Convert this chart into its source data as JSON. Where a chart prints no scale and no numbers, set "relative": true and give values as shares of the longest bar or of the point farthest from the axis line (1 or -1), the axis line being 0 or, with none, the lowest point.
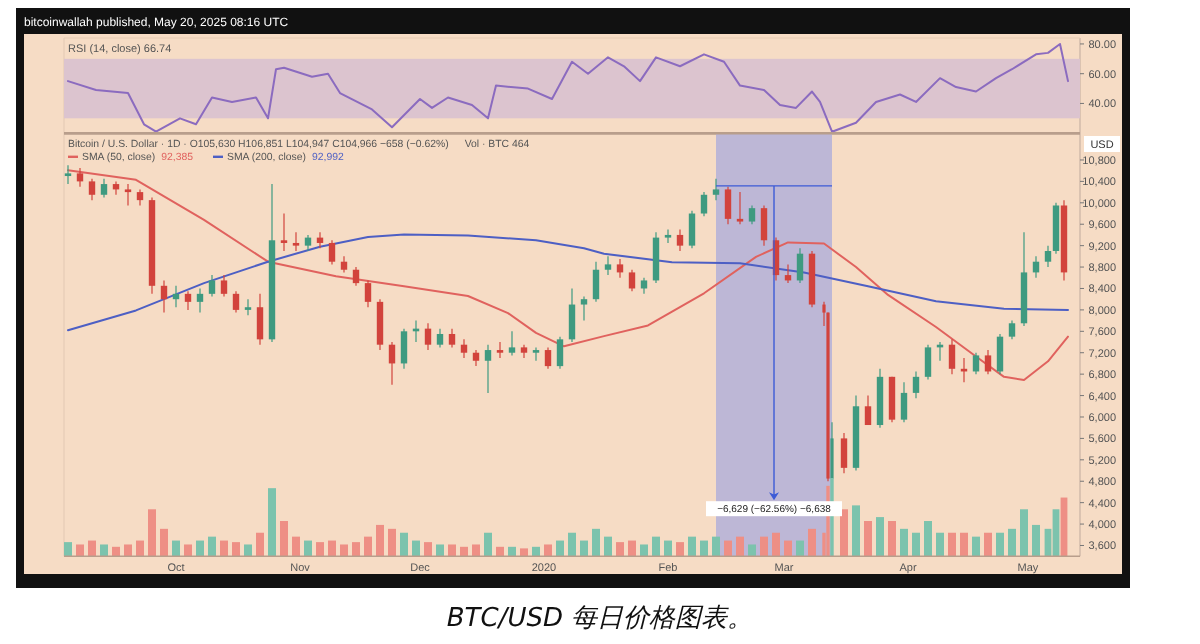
{
  "chart_data": [
    {
      "type": "line",
      "title": "RSI (14, close) 66.74",
      "color": "#8b6bbf",
      "x": [
        "2019-09-04",
        "2019-09-11",
        "2019-09-19",
        "2019-09-23",
        "2019-09-26",
        "2019-10-02",
        "2019-10-06",
        "2019-10-10",
        "2019-10-15",
        "2019-10-21",
        "2019-10-24",
        "2019-10-26",
        "2019-10-28",
        "2019-11-04",
        "2019-11-08",
        "2019-11-11",
        "2019-11-19",
        "2019-11-24",
        "2019-12-01",
        "2019-12-04",
        "2019-12-08",
        "2019-12-14",
        "2019-12-18",
        "2019-12-20",
        "2019-12-28",
        "2020-01-03",
        "2020-01-08",
        "2020-01-12",
        "2020-01-17",
        "2020-01-21",
        "2020-01-25",
        "2020-01-29",
        "2020-02-04",
        "2020-02-10",
        "2020-02-15",
        "2020-02-19",
        "2020-02-25",
        "2020-02-29",
        "2020-03-04",
        "2020-03-08",
        "2020-03-10",
        "2020-03-13",
        "2020-03-19",
        "2020-03-24",
        "2020-03-30",
        "2020-04-03",
        "2020-04-09",
        "2020-04-13",
        "2020-04-18",
        "2020-04-23",
        "2020-04-27",
        "2020-05-03",
        "2020-05-06",
        "2020-05-09",
        "2020-05-11"
      ],
      "values": [
        55,
        49,
        47,
        26,
        21,
        30,
        26,
        44,
        41,
        44,
        30,
        63,
        64,
        58,
        60,
        47,
        36,
        24,
        43,
        37,
        44,
        39,
        30,
        52,
        50,
        43,
        68,
        60,
        71,
        65,
        55,
        71,
        65,
        73,
        68,
        52,
        49,
        39,
        37,
        48,
        41,
        21,
        27,
        41,
        46,
        41,
        57,
        51,
        48,
        57,
        63,
        73,
        74,
        80,
        55
      ],
      "xlim": [
        "2019-09-03",
        "2020-05-14"
      ],
      "ylim": [
        20,
        84
      ],
      "yticks": [
        {
          "value": 40,
          "label": "40.00"
        },
        {
          "value": 60,
          "label": "60.00"
        },
        {
          "value": 80,
          "label": "80.00"
        }
      ],
      "bands": [
        {
          "axis": "y",
          "from": 30,
          "to": 70,
          "color": "#dcc4cf"
        }
      ],
      "tick_labels": "y",
      "annotations": [
        "bitcoinwallah published, May 20, 2025 08:16 UTC"
      ]
    },
    {
      "type": "candlestick",
      "title": "Bitcoin / U.S. Dollar · 1D · O105,630 H106,851 L104,947 C104,966 −658 (−0.62%)",
      "ylabel": "USD",
      "x": [
        "2019-09-04",
        "2019-09-07",
        "2019-09-10",
        "2019-09-13",
        "2019-09-16",
        "2019-09-19",
        "2019-09-22",
        "2019-09-25",
        "2019-09-28",
        "2019-10-01",
        "2019-10-04",
        "2019-10-07",
        "2019-10-10",
        "2019-10-13",
        "2019-10-16",
        "2019-10-19",
        "2019-10-22",
        "2019-10-25",
        "2019-10-28",
        "2019-10-31",
        "2019-11-03",
        "2019-11-06",
        "2019-11-09",
        "2019-11-12",
        "2019-11-15",
        "2019-11-18",
        "2019-11-21",
        "2019-11-24",
        "2019-11-27",
        "2019-11-30",
        "2019-12-03",
        "2019-12-06",
        "2019-12-09",
        "2019-12-12",
        "2019-12-15",
        "2019-12-18",
        "2019-12-21",
        "2019-12-24",
        "2019-12-27",
        "2019-12-30",
        "2020-01-02",
        "2020-01-05",
        "2020-01-08",
        "2020-01-11",
        "2020-01-14",
        "2020-01-17",
        "2020-01-20",
        "2020-01-23",
        "2020-01-26",
        "2020-01-29",
        "2020-02-01",
        "2020-02-04",
        "2020-02-07",
        "2020-02-10",
        "2020-02-13",
        "2020-02-16",
        "2020-02-19",
        "2020-02-22",
        "2020-02-25",
        "2020-02-28",
        "2020-03-02",
        "2020-03-05",
        "2020-03-08",
        "2020-03-11",
        "2020-03-12",
        "2020-03-13",
        "2020-03-16",
        "2020-03-19",
        "2020-03-22",
        "2020-03-25",
        "2020-03-28",
        "2020-03-31",
        "2020-04-03",
        "2020-04-06",
        "2020-04-09",
        "2020-04-12",
        "2020-04-15",
        "2020-04-18",
        "2020-04-21",
        "2020-04-24",
        "2020-04-27",
        "2020-04-30",
        "2020-05-03",
        "2020-05-06",
        "2020-05-08",
        "2020-05-10"
      ],
      "ohlc": [
        [
          10500,
          10700,
          10350,
          10550
        ],
        [
          10550,
          10650,
          10300,
          10400
        ],
        [
          10400,
          10450,
          10050,
          10150
        ],
        [
          10150,
          10450,
          10100,
          10350
        ],
        [
          10350,
          10400,
          10150,
          10250
        ],
        [
          10250,
          10350,
          9950,
          10200
        ],
        [
          10200,
          10250,
          9950,
          10050
        ],
        [
          10050,
          10100,
          8300,
          8450
        ],
        [
          8450,
          8550,
          7950,
          8200
        ],
        [
          8200,
          8450,
          8050,
          8300
        ],
        [
          8300,
          8350,
          8000,
          8150
        ],
        [
          8150,
          8400,
          7950,
          8300
        ],
        [
          8300,
          8650,
          8250,
          8550
        ],
        [
          8550,
          8650,
          8250,
          8300
        ],
        [
          8300,
          8350,
          7950,
          8000
        ],
        [
          8000,
          8200,
          7900,
          8050
        ],
        [
          8050,
          8300,
          7350,
          7450
        ],
        [
          7450,
          10350,
          7400,
          9300
        ],
        [
          9300,
          9800,
          9100,
          9250
        ],
        [
          9250,
          9450,
          9100,
          9200
        ],
        [
          9200,
          9400,
          9100,
          9350
        ],
        [
          9350,
          9450,
          9150,
          9250
        ],
        [
          9250,
          9300,
          8850,
          8900
        ],
        [
          8900,
          9000,
          8700,
          8750
        ],
        [
          8750,
          8800,
          8450,
          8500
        ],
        [
          8500,
          8550,
          8050,
          8150
        ],
        [
          8150,
          8200,
          7250,
          7350
        ],
        [
          7350,
          7400,
          6600,
          7000
        ],
        [
          7000,
          7650,
          6900,
          7600
        ],
        [
          7600,
          7800,
          7400,
          7650
        ],
        [
          7650,
          7750,
          7250,
          7350
        ],
        [
          7350,
          7650,
          7300,
          7550
        ],
        [
          7550,
          7650,
          7300,
          7350
        ],
        [
          7350,
          7450,
          7100,
          7200
        ],
        [
          7200,
          7250,
          6950,
          7050
        ],
        [
          7050,
          7350,
          6450,
          7250
        ],
        [
          7250,
          7400,
          7100,
          7200
        ],
        [
          7200,
          7600,
          7150,
          7300
        ],
        [
          7300,
          7350,
          7100,
          7200
        ],
        [
          7200,
          7300,
          7050,
          7250
        ],
        [
          7250,
          7300,
          6900,
          6950
        ],
        [
          6950,
          7500,
          6900,
          7450
        ],
        [
          7450,
          8400,
          7400,
          8100
        ],
        [
          8100,
          8250,
          7800,
          8200
        ],
        [
          8200,
          8900,
          8150,
          8750
        ],
        [
          8750,
          9000,
          8650,
          8850
        ],
        [
          8850,
          8950,
          8600,
          8700
        ],
        [
          8700,
          8750,
          8350,
          8400
        ],
        [
          8400,
          8600,
          8300,
          8550
        ],
        [
          8550,
          9450,
          8500,
          9350
        ],
        [
          9350,
          9500,
          9250,
          9400
        ],
        [
          9400,
          9500,
          9100,
          9200
        ],
        [
          9200,
          9850,
          9150,
          9800
        ],
        [
          9800,
          10200,
          9750,
          10150
        ],
        [
          10150,
          10450,
          10050,
          10250
        ],
        [
          10250,
          10300,
          9600,
          9700
        ],
        [
          9700,
          10200,
          9600,
          9650
        ],
        [
          9650,
          9950,
          9600,
          9900
        ],
        [
          9900,
          9950,
          9200,
          9300
        ],
        [
          9300,
          9350,
          8550,
          8650
        ],
        [
          8650,
          8850,
          8500,
          8550
        ],
        [
          8550,
          9150,
          8500,
          9050
        ],
        [
          9050,
          9100,
          8050,
          8100
        ],
        [
          8100,
          8150,
          7700,
          7950
        ],
        [
          7950,
          7950,
          4800,
          4850
        ],
        [
          4850,
          5900,
          3860,
          5600
        ],
        [
          5600,
          5700,
          4950,
          5050
        ],
        [
          5050,
          6400,
          5000,
          6200
        ],
        [
          6200,
          6400,
          5850,
          5850
        ],
        [
          5850,
          6900,
          5800,
          6750
        ],
        [
          6750,
          6750,
          5900,
          5950
        ],
        [
          5950,
          6650,
          5900,
          6450
        ],
        [
          6450,
          6850,
          6350,
          6750
        ],
        [
          6750,
          7350,
          6700,
          7300
        ],
        [
          7300,
          7400,
          7050,
          7350
        ],
        [
          7350,
          7450,
          6800,
          6900
        ],
        [
          6900,
          7100,
          6650,
          6850
        ],
        [
          6850,
          7200,
          6800,
          7150
        ],
        [
          7150,
          7250,
          6800,
          6850
        ],
        [
          6850,
          7550,
          6800,
          7500
        ],
        [
          7500,
          7800,
          7450,
          7750
        ],
        [
          7750,
          9450,
          7700,
          8700
        ],
        [
          8700,
          9000,
          8600,
          8900
        ],
        [
          8900,
          9200,
          8800,
          9100
        ],
        [
          9100,
          10000,
          9050,
          9950
        ],
        [
          9950,
          10050,
          8550,
          8700
        ]
      ],
      "series": [
        {
          "name": "SMA (50, close)",
          "type": "line",
          "color": "#e0625e",
          "x": [
            "2019-09-04",
            "2019-09-21",
            "2019-10-08",
            "2019-10-24",
            "2019-11-10",
            "2019-11-27",
            "2019-12-13",
            "2019-12-23",
            "2019-12-30",
            "2020-01-06",
            "2020-01-16",
            "2020-01-27",
            "2020-02-10",
            "2020-02-23",
            "2020-03-02",
            "2020-03-11",
            "2020-03-19",
            "2020-03-27",
            "2020-04-08",
            "2020-04-18",
            "2020-04-25",
            "2020-04-30",
            "2020-05-06",
            "2020-05-11"
          ],
          "values": [
            10610,
            10430,
            9680,
            8900,
            8630,
            8440,
            8260,
            7940,
            7570,
            7320,
            7510,
            7710,
            8310,
            8990,
            9260,
            9240,
            8800,
            8280,
            7680,
            7130,
            6750,
            6690,
            7040,
            7500
          ]
        },
        {
          "name": "SMA (200, close)",
          "type": "line",
          "color": "#4d5fc4",
          "x": [
            "2019-09-04",
            "2019-09-21",
            "2019-10-08",
            "2019-10-24",
            "2019-11-06",
            "2019-11-18",
            "2019-11-27",
            "2019-12-13",
            "2019-12-30",
            "2020-01-11",
            "2020-01-16",
            "2020-02-02",
            "2020-02-19",
            "2020-03-06",
            "2020-03-22",
            "2020-04-08",
            "2020-04-25",
            "2020-05-11"
          ],
          "values": [
            7620,
            7990,
            8500,
            8900,
            9180,
            9360,
            9410,
            9390,
            9300,
            9150,
            9050,
            8890,
            8870,
            8700,
            8440,
            8160,
            8020,
            8000
          ]
        }
      ],
      "xlim": [
        "2019-09-03",
        "2020-05-14"
      ],
      "ylim": [
        3400,
        11300
      ],
      "yticks": [
        {
          "value": 3600,
          "label": "3,600"
        },
        {
          "value": 4000,
          "label": "4,000"
        },
        {
          "value": 4400,
          "label": "4,400"
        },
        {
          "value": 4800,
          "label": "4,800"
        },
        {
          "value": 5200,
          "label": "5,200"
        },
        {
          "value": 5600,
          "label": "5,600"
        },
        {
          "value": 6000,
          "label": "6,000"
        },
        {
          "value": 6400,
          "label": "6,400"
        },
        {
          "value": 6800,
          "label": "6,800"
        },
        {
          "value": 7200,
          "label": "7,200"
        },
        {
          "value": 7600,
          "label": "7,600"
        },
        {
          "value": 8000,
          "label": "8,000"
        },
        {
          "value": 8400,
          "label": "8,400"
        },
        {
          "value": 8800,
          "label": "8,800"
        },
        {
          "value": 9200,
          "label": "9,200"
        },
        {
          "value": 9600,
          "label": "9,600"
        },
        {
          "value": 10000,
          "label": "10,000"
        },
        {
          "value": 10400,
          "label": "10,400"
        },
        {
          "value": 10800,
          "label": "10,800"
        }
      ],
      "tick_labels": "y",
      "legend": "top left",
      "bands": [
        {
          "axis": "x",
          "from": "2020-02-13",
          "to": "2020-03-13",
          "color": "#bdb7d6"
        }
      ],
      "annotations": [
        "Vol · BTC 464",
        "92,385",
        "92,992",
        "−6,629 (−62.56%) −6,638"
      ]
    },
    {
      "type": "bar",
      "relative": true,
      "x": [
        "2019-09-04",
        "2019-09-07",
        "2019-09-10",
        "2019-09-13",
        "2019-09-16",
        "2019-09-19",
        "2019-09-22",
        "2019-09-25",
        "2019-09-28",
        "2019-10-01",
        "2019-10-04",
        "2019-10-07",
        "2019-10-10",
        "2019-10-13",
        "2019-10-16",
        "2019-10-19",
        "2019-10-22",
        "2019-10-25",
        "2019-10-28",
        "2019-10-31",
        "2019-11-03",
        "2019-11-06",
        "2019-11-09",
        "2019-11-12",
        "2019-11-15",
        "2019-11-18",
        "2019-11-21",
        "2019-11-24",
        "2019-11-27",
        "2019-11-30",
        "2019-12-03",
        "2019-12-06",
        "2019-12-09",
        "2019-12-12",
        "2019-12-15",
        "2019-12-18",
        "2019-12-21",
        "2019-12-24",
        "2019-12-27",
        "2019-12-30",
        "2020-01-02",
        "2020-01-05",
        "2020-01-08",
        "2020-01-11",
        "2020-01-14",
        "2020-01-17",
        "2020-01-20",
        "2020-01-23",
        "2020-01-26",
        "2020-01-29",
        "2020-02-01",
        "2020-02-04",
        "2020-02-07",
        "2020-02-10",
        "2020-02-13",
        "2020-02-16",
        "2020-02-19",
        "2020-02-22",
        "2020-02-25",
        "2020-02-28",
        "2020-03-02",
        "2020-03-05",
        "2020-03-08",
        "2020-03-11",
        "2020-03-12",
        "2020-03-13",
        "2020-03-16",
        "2020-03-19",
        "2020-03-22",
        "2020-03-25",
        "2020-03-28",
        "2020-03-31",
        "2020-04-03",
        "2020-04-06",
        "2020-04-09",
        "2020-04-12",
        "2020-04-15",
        "2020-04-18",
        "2020-04-21",
        "2020-04-24",
        "2020-04-27",
        "2020-04-30",
        "2020-05-03",
        "2020-05-06",
        "2020-05-08",
        "2020-05-10"
      ],
      "values": [
        0.18,
        0.15,
        0.2,
        0.15,
        0.12,
        0.15,
        0.2,
        0.6,
        0.35,
        0.2,
        0.15,
        0.2,
        0.25,
        0.2,
        0.18,
        0.15,
        0.3,
        0.87,
        0.45,
        0.25,
        0.2,
        0.18,
        0.2,
        0.15,
        0.18,
        0.25,
        0.4,
        0.35,
        0.3,
        0.2,
        0.18,
        0.15,
        0.15,
        0.12,
        0.15,
        0.3,
        0.12,
        0.12,
        0.1,
        0.12,
        0.15,
        0.2,
        0.3,
        0.2,
        0.35,
        0.25,
        0.18,
        0.2,
        0.15,
        0.25,
        0.2,
        0.18,
        0.25,
        0.2,
        0.25,
        0.2,
        0.25,
        0.15,
        0.25,
        0.3,
        0.2,
        0.2,
        0.35,
        0.3,
        0.9,
        1,
        0.6,
        0.65,
        0.45,
        0.5,
        0.45,
        0.35,
        0.3,
        0.45,
        0.3,
        0.3,
        0.3,
        0.25,
        0.3,
        0.3,
        0.35,
        0.6,
        0.4,
        0.35,
        0.6,
        0.75
      ],
      "colors": [
        "#7cc3ad",
        "#ee8f85",
        "#ee8f85",
        "#7cc3ad",
        "#ee8f85",
        "#ee8f85",
        "#ee8f85",
        "#ee8f85",
        "#ee8f85",
        "#7cc3ad",
        "#ee8f85",
        "#7cc3ad",
        "#7cc3ad",
        "#ee8f85",
        "#ee8f85",
        "#7cc3ad",
        "#ee8f85",
        "#7cc3ad",
        "#ee8f85",
        "#ee8f85",
        "#7cc3ad",
        "#ee8f85",
        "#ee8f85",
        "#ee8f85",
        "#ee8f85",
        "#ee8f85",
        "#ee8f85",
        "#ee8f85",
        "#7cc3ad",
        "#7cc3ad",
        "#ee8f85",
        "#7cc3ad",
        "#ee8f85",
        "#ee8f85",
        "#ee8f85",
        "#7cc3ad",
        "#ee8f85",
        "#7cc3ad",
        "#ee8f85",
        "#7cc3ad",
        "#ee8f85",
        "#7cc3ad",
        "#7cc3ad",
        "#7cc3ad",
        "#7cc3ad",
        "#7cc3ad",
        "#ee8f85",
        "#ee8f85",
        "#7cc3ad",
        "#7cc3ad",
        "#7cc3ad",
        "#ee8f85",
        "#7cc3ad",
        "#7cc3ad",
        "#7cc3ad",
        "#ee8f85",
        "#ee8f85",
        "#7cc3ad",
        "#ee8f85",
        "#ee8f85",
        "#ee8f85",
        "#7cc3ad",
        "#ee8f85",
        "#ee8f85",
        "#ee8f85",
        "#7cc3ad",
        "#ee8f85",
        "#7cc3ad",
        "#ee8f85",
        "#7cc3ad",
        "#ee8f85",
        "#7cc3ad",
        "#7cc3ad",
        "#7cc3ad",
        "#7cc3ad",
        "#ee8f85",
        "#ee8f85",
        "#7cc3ad",
        "#ee8f85",
        "#7cc3ad",
        "#7cc3ad",
        "#7cc3ad",
        "#7cc3ad",
        "#7cc3ad",
        "#7cc3ad",
        "#ee8f85"
      ],
      "xlim": [
        "2019-09-03",
        "2020-05-14"
      ],
      "xticks": [
        {
          "value": "2019-10-01",
          "label": "Oct"
        },
        {
          "value": "2019-11-01",
          "label": "Nov"
        },
        {
          "value": "2019-12-01",
          "label": "Dec"
        },
        {
          "value": "2020-01-01",
          "label": "2020"
        },
        {
          "value": "2020-02-01",
          "label": "Feb"
        },
        {
          "value": "2020-03-01",
          "label": "Mar"
        },
        {
          "value": "2020-04-01",
          "label": "Apr"
        },
        {
          "value": "2020-05-01",
          "label": "May"
        }
      ],
      "tick_labels": "x",
      "annotations": [
        "BTC/USD 每日价格图表。"
      ]
    }
  ]
}
